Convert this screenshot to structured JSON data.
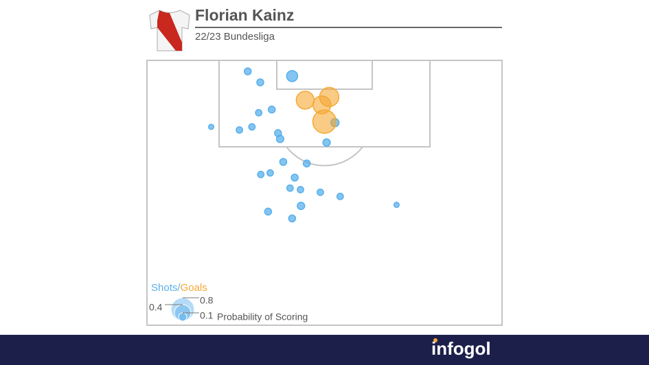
{
  "chart_data": {
    "type": "scatter",
    "title": "Florian Kainz",
    "subtitle": "22/23 Bundesliga",
    "xlim": [
      0,
      68
    ],
    "ylim": [
      0,
      50.6
    ],
    "series": [
      {
        "name": "Shots",
        "color": "#5ab0ec",
        "x": [
          19.3,
          27.8,
          21.7,
          36.0,
          23.9,
          21.4,
          12.3,
          17.7,
          20.1,
          25.1,
          25.5,
          34.4,
          26.1,
          30.6,
          21.8,
          23.6,
          28.3,
          27.4,
          29.4,
          33.2,
          37.0,
          47.8,
          29.5,
          23.2,
          27.8
        ],
        "values": [
          2.1,
          3.0,
          4.2,
          11.9,
          9.4,
          10.0,
          12.7,
          13.3,
          12.7,
          13.9,
          15.0,
          15.7,
          19.4,
          19.7,
          21.8,
          21.5,
          22.4,
          24.4,
          24.7,
          25.2,
          26.0,
          27.6,
          27.8,
          28.9,
          30.2
        ],
        "sizes": [
          0.07,
          0.18,
          0.07,
          0.1,
          0.07,
          0.06,
          0.04,
          0.06,
          0.06,
          0.07,
          0.08,
          0.08,
          0.07,
          0.07,
          0.06,
          0.06,
          0.07,
          0.06,
          0.06,
          0.06,
          0.06,
          0.04,
          0.08,
          0.07,
          0.07
        ]
      },
      {
        "name": "Goals",
        "color": "#f5a833",
        "x": [
          30.3,
          34.9,
          33.5,
          34.0
        ],
        "values": [
          7.6,
          7.0,
          8.5,
          11.7
        ],
        "sizes": [
          0.47,
          0.54,
          0.47,
          0.8
        ]
      }
    ],
    "legend_separator": "/",
    "size_legend": {
      "title": "Probability of Scoring",
      "values": [
        0.1,
        0.4,
        0.8
      ]
    },
    "brand": "infogol"
  }
}
